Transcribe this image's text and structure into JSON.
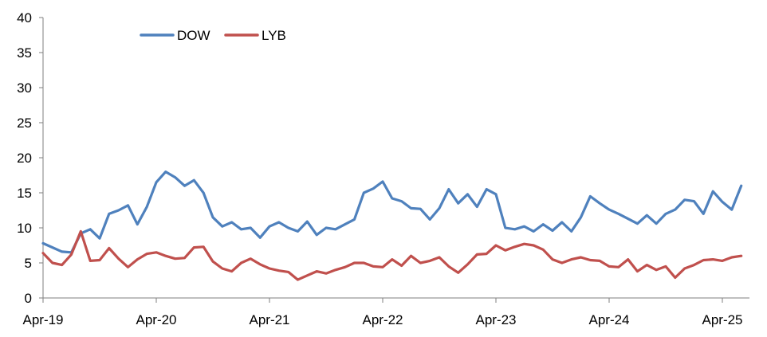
{
  "chart_data": {
    "type": "line",
    "title": "",
    "xlabel": "",
    "ylabel": "",
    "ylim": [
      0,
      40
    ],
    "yticks": [
      0,
      5,
      10,
      15,
      20,
      25,
      30,
      35,
      40
    ],
    "xlim": [
      "2019-04",
      "2025-06"
    ],
    "xticks": [
      {
        "label": "Apr-19",
        "date": "2019-04"
      },
      {
        "label": "Apr-20",
        "date": "2020-04"
      },
      {
        "label": "Apr-21",
        "date": "2021-04"
      },
      {
        "label": "Apr-22",
        "date": "2022-04"
      },
      {
        "label": "Apr-23",
        "date": "2023-04"
      },
      {
        "label": "Apr-24",
        "date": "2024-04"
      },
      {
        "label": "Apr-25",
        "date": "2025-04"
      }
    ],
    "legend_position": "top-left",
    "grid": false,
    "series": [
      {
        "name": "DOW",
        "color": "#4f81bd",
        "points": [
          [
            "2019-04",
            7.8
          ],
          [
            "2019-05",
            7.2
          ],
          [
            "2019-06",
            6.6
          ],
          [
            "2019-07",
            6.5
          ],
          [
            "2019-08",
            9.2
          ],
          [
            "2019-09",
            9.8
          ],
          [
            "2019-10",
            8.5
          ],
          [
            "2019-11",
            12.0
          ],
          [
            "2019-12",
            12.5
          ],
          [
            "2020-01",
            13.2
          ],
          [
            "2020-02",
            10.5
          ],
          [
            "2020-03",
            13.0
          ],
          [
            "2020-04",
            16.5
          ],
          [
            "2020-05",
            18.0
          ],
          [
            "2020-06",
            17.2
          ],
          [
            "2020-07",
            16.0
          ],
          [
            "2020-08",
            16.8
          ],
          [
            "2020-09",
            15.0
          ],
          [
            "2020-10",
            11.5
          ],
          [
            "2020-11",
            10.2
          ],
          [
            "2020-12",
            10.8
          ],
          [
            "2021-01",
            9.8
          ],
          [
            "2021-02",
            10.0
          ],
          [
            "2021-03",
            8.6
          ],
          [
            "2021-04",
            10.2
          ],
          [
            "2021-05",
            10.8
          ],
          [
            "2021-06",
            10.0
          ],
          [
            "2021-07",
            9.5
          ],
          [
            "2021-08",
            10.9
          ],
          [
            "2021-09",
            9.0
          ],
          [
            "2021-10",
            10.0
          ],
          [
            "2021-11",
            9.8
          ],
          [
            "2021-12",
            10.5
          ],
          [
            "2022-01",
            11.2
          ],
          [
            "2022-02",
            15.0
          ],
          [
            "2022-03",
            15.6
          ],
          [
            "2022-04",
            16.6
          ],
          [
            "2022-05",
            14.2
          ],
          [
            "2022-06",
            13.8
          ],
          [
            "2022-07",
            12.8
          ],
          [
            "2022-08",
            12.7
          ],
          [
            "2022-09",
            11.2
          ],
          [
            "2022-10",
            12.8
          ],
          [
            "2022-11",
            15.5
          ],
          [
            "2022-12",
            13.5
          ],
          [
            "2023-01",
            14.8
          ],
          [
            "2023-02",
            13.0
          ],
          [
            "2023-03",
            15.5
          ],
          [
            "2023-04",
            14.8
          ],
          [
            "2023-05",
            10.0
          ],
          [
            "2023-06",
            9.8
          ],
          [
            "2023-07",
            10.2
          ],
          [
            "2023-08",
            9.5
          ],
          [
            "2023-09",
            10.5
          ],
          [
            "2023-10",
            9.6
          ],
          [
            "2023-11",
            10.8
          ],
          [
            "2023-12",
            9.5
          ],
          [
            "2024-01",
            11.5
          ],
          [
            "2024-02",
            14.5
          ],
          [
            "2024-03",
            13.5
          ],
          [
            "2024-04",
            12.6
          ],
          [
            "2024-05",
            12.0
          ],
          [
            "2024-06",
            11.3
          ],
          [
            "2024-07",
            10.6
          ],
          [
            "2024-08",
            11.8
          ],
          [
            "2024-09",
            10.6
          ],
          [
            "2024-10",
            12.0
          ],
          [
            "2024-11",
            12.6
          ],
          [
            "2024-12",
            14.0
          ],
          [
            "2025-01",
            13.8
          ],
          [
            "2025-02",
            12.0
          ],
          [
            "2025-03",
            15.2
          ],
          [
            "2025-04",
            13.7
          ],
          [
            "2025-05",
            12.6
          ],
          [
            "2025-06",
            16.0
          ]
        ]
      },
      {
        "name": "LYB",
        "color": "#c0504d",
        "points": [
          [
            "2019-04",
            6.4
          ],
          [
            "2019-05",
            5.0
          ],
          [
            "2019-06",
            4.7
          ],
          [
            "2019-07",
            6.2
          ],
          [
            "2019-08",
            9.5
          ],
          [
            "2019-09",
            5.3
          ],
          [
            "2019-10",
            5.4
          ],
          [
            "2019-11",
            7.1
          ],
          [
            "2019-12",
            5.6
          ],
          [
            "2020-01",
            4.4
          ],
          [
            "2020-02",
            5.5
          ],
          [
            "2020-03",
            6.3
          ],
          [
            "2020-04",
            6.5
          ],
          [
            "2020-05",
            6.0
          ],
          [
            "2020-06",
            5.6
          ],
          [
            "2020-07",
            5.7
          ],
          [
            "2020-08",
            7.2
          ],
          [
            "2020-09",
            7.3
          ],
          [
            "2020-10",
            5.2
          ],
          [
            "2020-11",
            4.2
          ],
          [
            "2020-12",
            3.8
          ],
          [
            "2021-01",
            5.0
          ],
          [
            "2021-02",
            5.6
          ],
          [
            "2021-03",
            4.8
          ],
          [
            "2021-04",
            4.2
          ],
          [
            "2021-05",
            3.9
          ],
          [
            "2021-06",
            3.7
          ],
          [
            "2021-07",
            2.6
          ],
          [
            "2021-08",
            3.2
          ],
          [
            "2021-09",
            3.8
          ],
          [
            "2021-10",
            3.5
          ],
          [
            "2021-11",
            4.0
          ],
          [
            "2021-12",
            4.4
          ],
          [
            "2022-01",
            5.0
          ],
          [
            "2022-02",
            5.0
          ],
          [
            "2022-03",
            4.5
          ],
          [
            "2022-04",
            4.4
          ],
          [
            "2022-05",
            5.5
          ],
          [
            "2022-06",
            4.6
          ],
          [
            "2022-07",
            6.0
          ],
          [
            "2022-08",
            5.0
          ],
          [
            "2022-09",
            5.3
          ],
          [
            "2022-10",
            5.8
          ],
          [
            "2022-11",
            4.5
          ],
          [
            "2022-12",
            3.6
          ],
          [
            "2023-01",
            4.8
          ],
          [
            "2023-02",
            6.2
          ],
          [
            "2023-03",
            6.3
          ],
          [
            "2023-04",
            7.5
          ],
          [
            "2023-05",
            6.8
          ],
          [
            "2023-06",
            7.3
          ],
          [
            "2023-07",
            7.7
          ],
          [
            "2023-08",
            7.5
          ],
          [
            "2023-09",
            6.9
          ],
          [
            "2023-10",
            5.5
          ],
          [
            "2023-11",
            5.0
          ],
          [
            "2023-12",
            5.5
          ],
          [
            "2024-01",
            5.8
          ],
          [
            "2024-02",
            5.4
          ],
          [
            "2024-03",
            5.3
          ],
          [
            "2024-04",
            4.5
          ],
          [
            "2024-05",
            4.4
          ],
          [
            "2024-06",
            5.5
          ],
          [
            "2024-07",
            3.8
          ],
          [
            "2024-08",
            4.7
          ],
          [
            "2024-09",
            4.0
          ],
          [
            "2024-10",
            4.5
          ],
          [
            "2024-11",
            2.9
          ],
          [
            "2024-12",
            4.2
          ],
          [
            "2025-01",
            4.7
          ],
          [
            "2025-02",
            5.4
          ],
          [
            "2025-03",
            5.5
          ],
          [
            "2025-04",
            5.3
          ],
          [
            "2025-05",
            5.8
          ],
          [
            "2025-06",
            6.0
          ]
        ]
      }
    ]
  }
}
